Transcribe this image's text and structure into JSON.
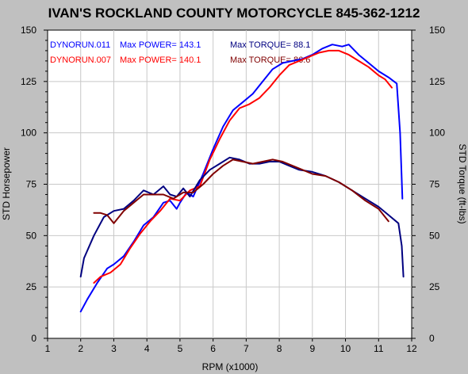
{
  "chart_data": {
    "type": "line",
    "title": "IVAN'S ROCKLAND COUNTY MOTORCYCLE 845-362-1212",
    "xlabel": "RPM (x1000)",
    "ylabel_left": "STD Horsepower",
    "ylabel_right": "STD Torque (ft-lbs)",
    "xlim": [
      1,
      12
    ],
    "ylim": [
      0,
      150
    ],
    "x_ticks": [
      1,
      2,
      3,
      4,
      5,
      6,
      7,
      8,
      9,
      10,
      11,
      12
    ],
    "y_ticks": [
      0,
      25,
      50,
      75,
      100,
      125,
      150
    ],
    "grid": true,
    "legend": [
      {
        "run": "DYNORUN.011",
        "power_text": "Max POWER= 143.1",
        "torque_text": "Max TORQUE= 88.1",
        "color": "#0000ff",
        "torque_color": "#000080"
      },
      {
        "run": "DYNORUN.007",
        "power_text": "Max POWER= 140.1",
        "torque_text": "Max TORQUE= 86.6",
        "color": "#ff0000",
        "torque_color": "#800000"
      }
    ],
    "series": [
      {
        "key": "hp011",
        "color": "#0000ff",
        "x": [
          2.0,
          2.2,
          2.5,
          2.8,
          3.0,
          3.3,
          3.6,
          3.9,
          4.2,
          4.5,
          4.7,
          4.9,
          5.0,
          5.2,
          5.4,
          5.7,
          6.0,
          6.3,
          6.6,
          6.9,
          7.2,
          7.5,
          7.8,
          8.1,
          8.4,
          8.7,
          9.0,
          9.3,
          9.6,
          9.9,
          10.1,
          10.4,
          10.7,
          11.0,
          11.3,
          11.55,
          11.65,
          11.72
        ],
        "y": [
          13,
          19,
          27,
          34,
          36,
          40,
          47,
          55,
          59,
          66,
          67,
          63,
          66,
          71,
          69,
          80,
          92,
          103,
          111,
          115,
          119,
          125,
          131,
          134,
          135,
          136,
          138,
          141,
          143,
          142,
          143,
          138,
          134,
          130,
          127,
          124,
          100,
          68
        ]
      },
      {
        "key": "hp007",
        "color": "#ff0000",
        "x": [
          2.4,
          2.6,
          2.9,
          3.2,
          3.5,
          3.8,
          4.1,
          4.4,
          4.7,
          5.0,
          5.3,
          5.6,
          5.9,
          6.2,
          6.5,
          6.8,
          7.1,
          7.4,
          7.7,
          8.0,
          8.3,
          8.6,
          8.9,
          9.2,
          9.5,
          9.8,
          10.1,
          10.4,
          10.7,
          11.0,
          11.2,
          11.4
        ],
        "y": [
          27,
          30,
          32,
          36,
          44,
          51,
          57,
          62,
          68,
          67,
          72,
          74,
          87,
          97,
          106,
          112,
          114,
          117,
          122,
          128,
          133,
          135,
          137,
          139,
          140,
          140,
          138,
          135,
          132,
          128,
          126,
          122
        ]
      },
      {
        "key": "tq011",
        "color": "#000080",
        "x": [
          2.0,
          2.1,
          2.4,
          2.7,
          3.0,
          3.3,
          3.6,
          3.9,
          4.2,
          4.5,
          4.7,
          4.9,
          5.1,
          5.3,
          5.6,
          5.9,
          6.2,
          6.5,
          6.8,
          7.1,
          7.4,
          7.7,
          8.0,
          8.3,
          8.6,
          9.0,
          9.4,
          9.8,
          10.2,
          10.6,
          11.0,
          11.3,
          11.6,
          11.7,
          11.75
        ],
        "y": [
          30,
          39,
          50,
          59,
          62,
          63,
          67,
          72,
          70,
          74,
          70,
          69,
          73,
          69,
          77,
          82,
          85,
          88,
          87,
          85,
          85,
          86,
          86,
          84,
          82,
          81,
          79,
          76,
          72,
          68,
          64,
          60,
          56,
          45,
          30
        ]
      },
      {
        "key": "tq007",
        "color": "#800000",
        "x": [
          2.4,
          2.6,
          2.8,
          3.0,
          3.3,
          3.6,
          3.9,
          4.2,
          4.5,
          4.8,
          5.1,
          5.4,
          5.7,
          6.0,
          6.3,
          6.6,
          6.9,
          7.2,
          7.5,
          7.8,
          8.1,
          8.4,
          8.7,
          9.0,
          9.4,
          9.8,
          10.2,
          10.6,
          11.0,
          11.3
        ],
        "y": [
          61,
          61,
          60,
          56,
          62,
          66,
          70,
          70,
          70,
          68,
          71,
          71,
          75,
          80,
          84,
          87,
          86,
          85,
          86,
          87,
          86,
          84,
          82,
          80,
          79,
          76,
          72,
          67,
          63,
          57
        ]
      }
    ]
  }
}
